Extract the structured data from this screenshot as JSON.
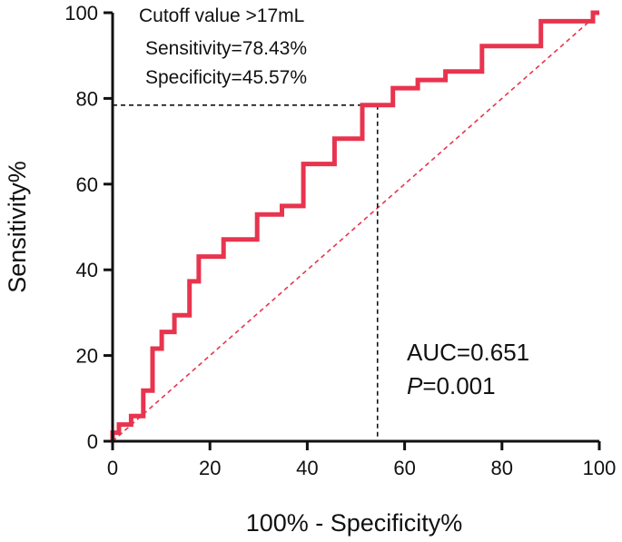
{
  "chart_data": {
    "type": "line",
    "title": "",
    "xlabel": "100% - Specificity%",
    "ylabel": "Sensitivity%",
    "xlim": [
      0,
      100
    ],
    "ylim": [
      0,
      100
    ],
    "xticks": [
      "0",
      "20",
      "40",
      "60",
      "80",
      "100"
    ],
    "yticks": [
      "0",
      "20",
      "40",
      "60",
      "80",
      "100"
    ],
    "series": [
      {
        "name": "ROC curve",
        "color": "#e8344e",
        "style": "step",
        "x": [
          0,
          0,
          1.3,
          1.3,
          3.8,
          3.8,
          6.3,
          6.3,
          8.2,
          8.2,
          10.1,
          10.1,
          12.7,
          12.7,
          15.8,
          15.8,
          17.7,
          17.7,
          22.8,
          22.8,
          29.7,
          29.7,
          34.8,
          34.8,
          39.2,
          39.2,
          45.6,
          45.6,
          51.3,
          51.3,
          54.4,
          54.4,
          57.6,
          57.6,
          62.7,
          62.7,
          68.4,
          68.4,
          75.9,
          75.9,
          88.0,
          88.0,
          98.7,
          98.7,
          100
        ],
        "y": [
          0,
          2,
          2,
          3.9,
          3.9,
          5.9,
          5.9,
          11.8,
          11.8,
          21.6,
          21.6,
          25.5,
          25.5,
          29.4,
          29.4,
          37.3,
          37.3,
          43.1,
          43.1,
          47.1,
          47.1,
          52.9,
          52.9,
          54.9,
          54.9,
          64.7,
          64.7,
          70.6,
          70.6,
          78.43,
          78.43,
          78.43,
          78.43,
          82.4,
          82.4,
          84.3,
          84.3,
          86.3,
          86.3,
          92.2,
          92.2,
          98.0,
          98.0,
          100,
          100
        ]
      },
      {
        "name": "Reference line",
        "color": "#e8344e",
        "style": "dashed",
        "x": [
          0,
          100
        ],
        "y": [
          0,
          100
        ]
      }
    ],
    "cutoff_point": {
      "x": 54.43,
      "y": 78.43
    },
    "annotations": {
      "cutoff": "Cutoff value >17mL",
      "sensitivity": "Sensitivity=78.43%",
      "specificity": "Specificity=45.57%",
      "auc": "AUC=0.651",
      "p_label": "P",
      "p_value": "=0.001"
    }
  }
}
